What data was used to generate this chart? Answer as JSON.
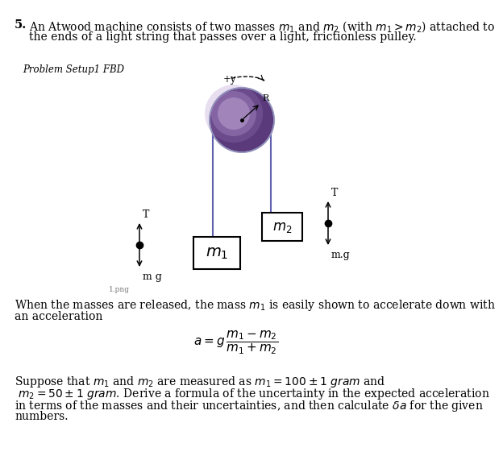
{
  "title_number": "5.",
  "title_text_line1": "An Atwood machine consists of two masses $m_1$ and $m_2$ (with $m_1 > m_2$) attached to",
  "title_text_line2": "the ends of a light string that passes over a light, frictionless pulley.",
  "problem_label": "Problem Setup1 FBD",
  "plus_y_label": "+y",
  "R_label": "R",
  "m1_label": "$m_1$",
  "m2_label": "$m_2$",
  "T_label": "T",
  "mg_label": "m g",
  "mg_label2": "m.g",
  "img_label": "1.png",
  "text1_line1": "When the masses are released, the mass $m_1$ is easily shown to accelerate down with",
  "text1_line2": "an acceleration",
  "text2_line1": "Suppose that $m_1$ and $m_2$ are measured as $m_1 = 100 \\pm 1$ $gram$ and",
  "text2_line2": " $m_2 = 50 \\pm 1$ $gram$. Derive a formula of the uncertainty in the expected acceleration",
  "text2_line3": "in terms of the masses and their uncertainties, and then calculate $\\delta a$ for the given",
  "text2_line4": "numbers.",
  "bg_color": "#ffffff",
  "text_color": "#000000",
  "pulley_dark": "#5a3a7a",
  "pulley_mid": "#8060a0",
  "pulley_light": "#c0a8d8",
  "string_color": "#6060b0",
  "box_color": "#000000"
}
